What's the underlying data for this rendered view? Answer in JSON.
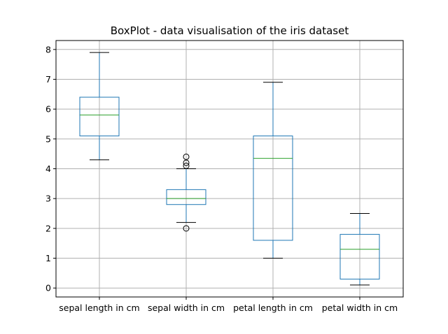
{
  "chart_data": {
    "type": "box",
    "title": "BoxPlot - data visualisation of the iris dataset",
    "xlabel": "",
    "ylabel": "",
    "ylim": [
      -0.3,
      8.3
    ],
    "yticks": [
      0,
      1,
      2,
      3,
      4,
      5,
      6,
      7,
      8
    ],
    "grid": true,
    "categories": [
      "sepal length in cm",
      "sepal width in cm",
      "petal length in cm",
      "petal width in cm"
    ],
    "boxes": [
      {
        "whisker_low": 4.3,
        "q1": 5.1,
        "median": 5.8,
        "q3": 6.4,
        "whisker_high": 7.9,
        "outliers": []
      },
      {
        "whisker_low": 2.2,
        "q1": 2.8,
        "median": 3.0,
        "q3": 3.3,
        "whisker_high": 4.0,
        "outliers": [
          4.4,
          4.2,
          4.1,
          2.0
        ]
      },
      {
        "whisker_low": 1.0,
        "q1": 1.6,
        "median": 4.35,
        "q3": 5.1,
        "whisker_high": 6.9,
        "outliers": []
      },
      {
        "whisker_low": 0.1,
        "q1": 0.3,
        "median": 1.3,
        "q3": 1.8,
        "whisker_high": 2.5,
        "outliers": []
      }
    ],
    "colors": {
      "box": "#1f77b4",
      "median": "#2ca02c",
      "whisker_cap": "#000000",
      "grid": "#b0b0b0"
    }
  }
}
